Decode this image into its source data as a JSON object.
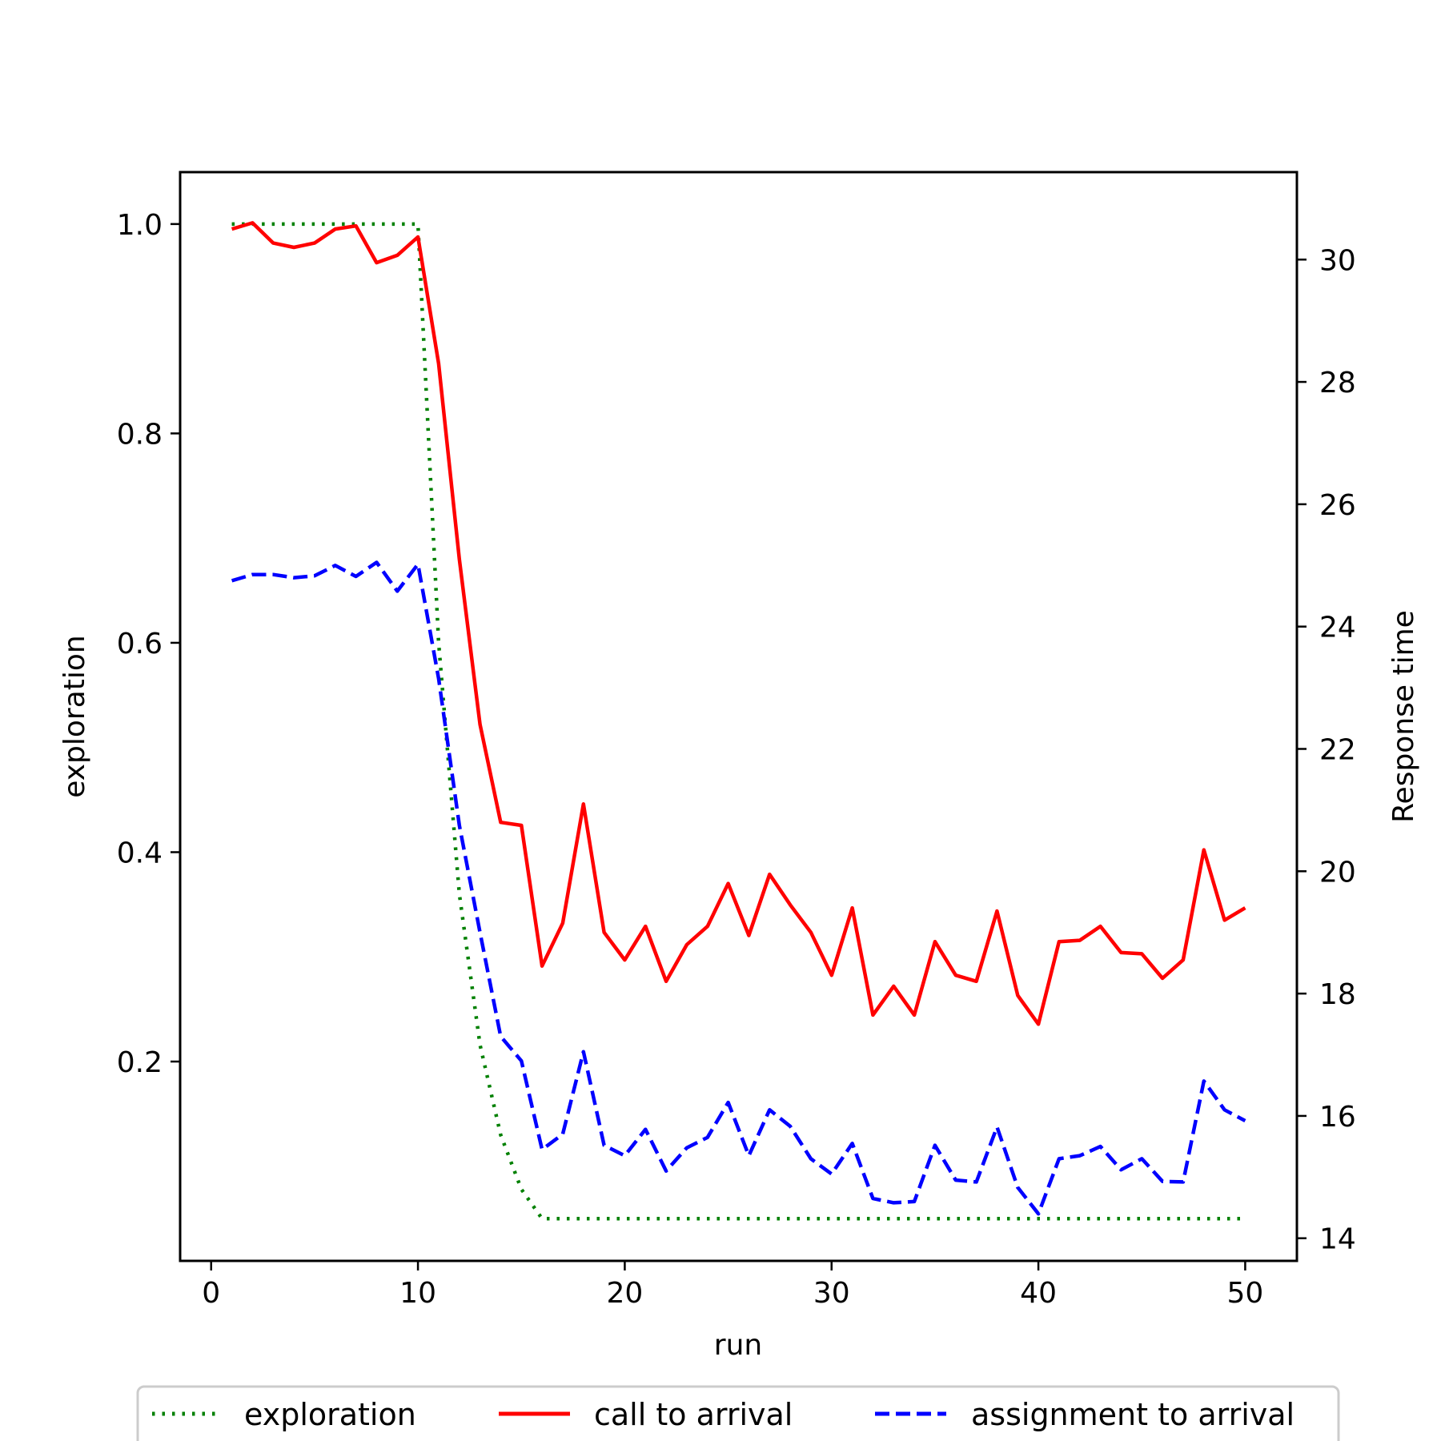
{
  "chart_data": {
    "type": "line",
    "title": "",
    "xlabel": "run",
    "ylabel": "exploration",
    "y2label": "Response time",
    "xlim": [
      -1.5,
      52.5
    ],
    "ylim": [
      0.0096,
      1.0496
    ],
    "y2lim": [
      13.63,
      31.43
    ],
    "x_ticks": [
      0,
      10,
      20,
      30,
      40,
      50
    ],
    "y_ticks": [
      0.2,
      0.4,
      0.6,
      0.8,
      1.0
    ],
    "y_tick_labels": [
      "0.2",
      "0.4",
      "0.6",
      "0.8",
      "1.0"
    ],
    "y2_ticks": [
      14,
      16,
      18,
      20,
      22,
      24,
      26,
      28,
      30
    ],
    "grid": false,
    "legend_position": "bottom-center",
    "x": [
      1,
      2,
      3,
      4,
      5,
      6,
      7,
      8,
      9,
      10,
      11,
      12,
      13,
      14,
      15,
      16,
      17,
      18,
      19,
      20,
      21,
      22,
      23,
      24,
      25,
      26,
      27,
      28,
      29,
      30,
      31,
      32,
      33,
      34,
      35,
      36,
      37,
      38,
      39,
      40,
      41,
      42,
      43,
      44,
      45,
      46,
      47,
      48,
      49,
      50
    ],
    "series": [
      {
        "name": "exploration",
        "axis": "left",
        "color": "#008000",
        "style": "dotted",
        "values": [
          1.0,
          1.0,
          1.0,
          1.0,
          1.0,
          1.0,
          1.0,
          1.0,
          1.0,
          1.0,
          0.6,
          0.36,
          0.216,
          0.13,
          0.078,
          0.05,
          0.05,
          0.05,
          0.05,
          0.05,
          0.05,
          0.05,
          0.05,
          0.05,
          0.05,
          0.05,
          0.05,
          0.05,
          0.05,
          0.05,
          0.05,
          0.05,
          0.05,
          0.05,
          0.05,
          0.05,
          0.05,
          0.05,
          0.05,
          0.05,
          0.05,
          0.05,
          0.05,
          0.05,
          0.05,
          0.05,
          0.05,
          0.05,
          0.05,
          0.05
        ]
      },
      {
        "name": "call to arrival",
        "axis": "right",
        "color": "#ff0000",
        "style": "solid",
        "values": [
          30.5,
          30.6,
          30.27,
          30.2,
          30.27,
          30.5,
          30.55,
          29.95,
          30.07,
          30.37,
          28.3,
          25.1,
          22.4,
          20.8,
          20.75,
          18.45,
          19.15,
          21.1,
          19.0,
          18.55,
          19.1,
          18.2,
          18.8,
          19.1,
          19.8,
          18.95,
          19.95,
          19.45,
          19.0,
          18.3,
          19.4,
          17.65,
          18.12,
          17.65,
          18.85,
          18.3,
          18.2,
          19.35,
          17.97,
          17.5,
          18.85,
          18.87,
          19.1,
          18.67,
          18.65,
          18.25,
          18.55,
          20.35,
          19.2,
          19.4
        ]
      },
      {
        "name": "assignment to arrival",
        "axis": "right",
        "color": "#0000ff",
        "style": "dashed",
        "values": [
          24.75,
          24.85,
          24.85,
          24.8,
          24.83,
          25.0,
          24.82,
          25.05,
          24.58,
          25.02,
          23.15,
          20.75,
          19.0,
          17.3,
          16.9,
          15.45,
          15.7,
          17.05,
          15.52,
          15.35,
          15.78,
          15.1,
          15.48,
          15.65,
          16.22,
          15.35,
          16.1,
          15.83,
          15.3,
          15.05,
          15.55,
          14.65,
          14.58,
          14.6,
          15.52,
          14.95,
          14.92,
          15.82,
          14.83,
          14.4,
          15.3,
          15.35,
          15.5,
          15.12,
          15.3,
          14.93,
          14.92,
          16.57,
          16.1,
          15.92
        ]
      }
    ]
  }
}
